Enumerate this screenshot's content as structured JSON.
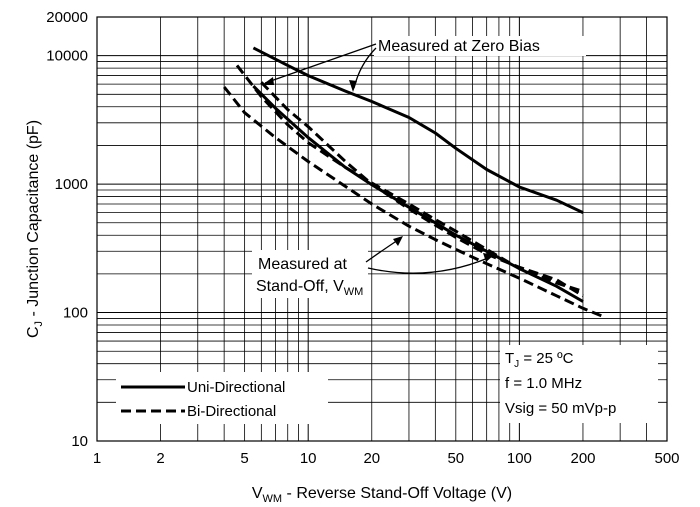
{
  "chart_data": {
    "type": "line",
    "x_scale": "log",
    "y_scale": "log",
    "xlim": [
      1,
      500
    ],
    "ylim": [
      10,
      20000
    ],
    "grid": true,
    "legend_placement": "bottom-left",
    "xlabel": {
      "main": "V",
      "sub": "WM",
      "rest": " - Reverse Stand-Off Voltage (V)"
    },
    "ylabel": {
      "main": "C",
      "sub": "J",
      "rest": " - Junction Capacitance (pF)"
    },
    "x_ticks": [
      {
        "value": 1,
        "label": "1"
      },
      {
        "value": 2,
        "label": "2"
      },
      {
        "value": 5,
        "label": "5"
      },
      {
        "value": 10,
        "label": "10"
      },
      {
        "value": 20,
        "label": "20"
      },
      {
        "value": 50,
        "label": "50"
      },
      {
        "value": 100,
        "label": "100"
      },
      {
        "value": 200,
        "label": "200"
      },
      {
        "value": 500,
        "label": "500"
      }
    ],
    "y_ticks": [
      {
        "value": 10,
        "label": "10"
      },
      {
        "value": 100,
        "label": "100"
      },
      {
        "value": 1000,
        "label": "1000"
      },
      {
        "value": 10000,
        "label": "10000"
      },
      {
        "value": 20000,
        "label": "20000"
      }
    ],
    "legend": [
      {
        "label": "Uni-Directional",
        "style": "solid"
      },
      {
        "label": "Bi-Directional",
        "style": "dashed"
      }
    ],
    "series": [
      {
        "label": "Uni-Directional",
        "style": "solid",
        "points": [
          [
            5.5,
            11500
          ],
          [
            8,
            8400
          ],
          [
            10,
            7000
          ],
          [
            15,
            5300
          ],
          [
            20,
            4400
          ],
          [
            30,
            3300
          ],
          [
            40,
            2500
          ],
          [
            50,
            1900
          ],
          [
            70,
            1300
          ],
          [
            100,
            950
          ],
          [
            150,
            750
          ],
          [
            200,
            600
          ]
        ]
      },
      {
        "label": "Uni-Directional",
        "style": "solid",
        "points": [
          [
            5.5,
            5800
          ],
          [
            7,
            3900
          ],
          [
            10,
            2300
          ],
          [
            15,
            1350
          ],
          [
            20,
            990
          ],
          [
            30,
            660
          ],
          [
            40,
            500
          ],
          [
            50,
            400
          ],
          [
            70,
            300
          ],
          [
            100,
            220
          ],
          [
            150,
            160
          ],
          [
            200,
            122
          ]
        ]
      },
      {
        "label": "Bi-Directional",
        "style": "dashed",
        "points": [
          [
            4.6,
            8400
          ],
          [
            6,
            4800
          ],
          [
            8,
            2900
          ],
          [
            10,
            2100
          ],
          [
            15,
            1350
          ],
          [
            20,
            1020
          ],
          [
            30,
            700
          ],
          [
            40,
            530
          ],
          [
            50,
            430
          ],
          [
            70,
            310
          ],
          [
            100,
            220
          ],
          [
            150,
            170
          ],
          [
            200,
            146
          ]
        ]
      },
      {
        "label": "Bi-Directional",
        "style": "dashed",
        "points": [
          [
            6,
            6200
          ],
          [
            8,
            3800
          ],
          [
            10,
            2800
          ],
          [
            15,
            1500
          ],
          [
            20,
            1000
          ],
          [
            30,
            640
          ],
          [
            40,
            480
          ],
          [
            50,
            385
          ],
          [
            70,
            285
          ],
          [
            100,
            225
          ],
          [
            150,
            180
          ],
          [
            200,
            135
          ]
        ]
      },
      {
        "label": "Bi-Directional",
        "style": "dashed",
        "points": [
          [
            4,
            5700
          ],
          [
            5,
            3600
          ],
          [
            7,
            2300
          ],
          [
            10,
            1500
          ],
          [
            15,
            960
          ],
          [
            20,
            700
          ],
          [
            30,
            470
          ],
          [
            40,
            370
          ],
          [
            50,
            310
          ],
          [
            70,
            240
          ],
          [
            100,
            185
          ],
          [
            150,
            135
          ],
          [
            200,
            108
          ],
          [
            250,
            93
          ]
        ]
      }
    ],
    "annotations": {
      "zero_bias": "Measured at Zero Bias",
      "standoff_line1": "Measured at",
      "standoff_line2_main": "Stand-Off, V",
      "standoff_line2_sub": "WM"
    },
    "conditions": {
      "tj_main": "T",
      "tj_sub": "J",
      "tj_rest": " = 25 ºC",
      "freq": "f = 1.0 MHz",
      "vsig": "Vsig = 50 mVp-p"
    }
  }
}
